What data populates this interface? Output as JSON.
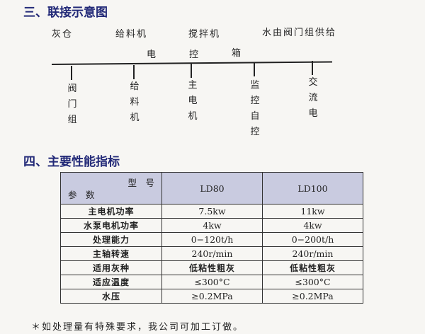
{
  "section3": {
    "title": "三、联接示意图",
    "top_labels": [
      "灰仓",
      "给料机",
      "搅拌机",
      "水由阀门组供给"
    ],
    "box_label": [
      "电",
      "控",
      "箱"
    ],
    "branches": [
      [
        "阀",
        "门",
        "组"
      ],
      [
        "给",
        "料",
        "机"
      ],
      [
        "主",
        "电",
        "机"
      ],
      [
        "监",
        "控",
        "自",
        "控"
      ],
      [
        "交",
        "流",
        "电"
      ]
    ]
  },
  "section4": {
    "title": "四、主要性能指标",
    "table": {
      "header_model": "型　号",
      "header_param": "参　数",
      "columns": [
        "LD80",
        "LD100"
      ],
      "rows": [
        {
          "param": "主电机功率",
          "values": [
            "7.5kw",
            "11kw"
          ]
        },
        {
          "param": "水泵电机功率",
          "values": [
            "4kw",
            "4kw"
          ]
        },
        {
          "param": "处理能力",
          "values": [
            "0−120t/h",
            "0−200t/h"
          ]
        },
        {
          "param": "主轴转速",
          "values": [
            "240r/min",
            "240r/min"
          ]
        },
        {
          "param": "适用灰种",
          "values": [
            "低粘性粗灰",
            "低粘性粗灰"
          ]
        },
        {
          "param": "适应温度",
          "values": [
            "≤300°C",
            "≤300°C"
          ]
        },
        {
          "param": "水压",
          "values": [
            "≥0.2MPa",
            "≥0.2MPa"
          ]
        }
      ]
    },
    "footnote": "＊如处理量有特殊要求，我公司可加工订做。"
  },
  "colors": {
    "heading": "#232a78",
    "table_header_bg": "#c9cbe0"
  }
}
